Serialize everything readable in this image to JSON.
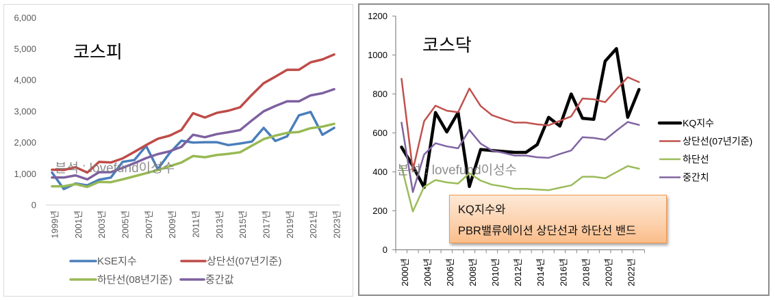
{
  "chart_data": [
    {
      "type": "line",
      "title": "코스피",
      "watermark": "분석 : lovefund이성수",
      "xlabel": "",
      "ylabel": "",
      "grid": false,
      "legend": "bottom",
      "ylim": [
        0,
        6000
      ],
      "y_ticks": [
        0,
        1000,
        2000,
        3000,
        4000,
        5000,
        6000
      ],
      "y_tick_labels": [
        "0",
        "1,000",
        "2,000",
        "3,000",
        "4,000",
        "5,000",
        "6,000"
      ],
      "categories": [
        "1999년",
        "",
        "2001년",
        "",
        "2003년",
        "",
        "2005년",
        "",
        "2007년",
        "",
        "2009년",
        "",
        "2011년",
        "",
        "2013년",
        "",
        "2015년",
        "",
        "2017년",
        "",
        "2019년",
        "",
        "2021년",
        "",
        "2023년"
      ],
      "series": [
        {
          "name": "KSE지수",
          "color": "#4a7ebb",
          "values": [
            1040,
            510,
            690,
            630,
            810,
            880,
            1380,
            1440,
            1890,
            1150,
            1660,
            2060,
            2000,
            2010,
            2010,
            1920,
            1970,
            2030,
            2470,
            2050,
            2200,
            2870,
            2980,
            2250,
            2470
          ]
        },
        {
          "name": "상단선(07년기준)",
          "color": "#be4b48",
          "values": [
            1130,
            1120,
            1210,
            1040,
            1380,
            1360,
            1490,
            1700,
            1920,
            2120,
            2220,
            2400,
            2940,
            2800,
            2950,
            3020,
            3130,
            3530,
            3900,
            4110,
            4330,
            4330,
            4570,
            4660,
            4820
          ]
        },
        {
          "name": "하단선(08년기준)",
          "color": "#98b954",
          "values": [
            600,
            600,
            670,
            580,
            740,
            730,
            820,
            920,
            1020,
            1120,
            1240,
            1360,
            1570,
            1530,
            1600,
            1640,
            1690,
            1900,
            2110,
            2220,
            2310,
            2340,
            2460,
            2510,
            2600
          ]
        },
        {
          "name": "중간값",
          "color": "#7d60a0",
          "values": [
            880,
            880,
            950,
            820,
            1050,
            1050,
            1190,
            1340,
            1500,
            1630,
            1720,
            1860,
            2250,
            2170,
            2270,
            2330,
            2400,
            2710,
            3000,
            3170,
            3320,
            3320,
            3510,
            3580,
            3710
          ]
        }
      ]
    },
    {
      "type": "line",
      "title": "코스닥",
      "watermark": "분석 : lovefund이성수",
      "xlabel": "",
      "ylabel": "",
      "grid": false,
      "legend": "right",
      "ylim": [
        0,
        1200
      ],
      "y_ticks": [
        0,
        200,
        400,
        600,
        800,
        1000,
        1200
      ],
      "y_tick_labels": [
        "0",
        "200",
        "400",
        "600",
        "800",
        "1000",
        "1200"
      ],
      "categories": [
        "2000년",
        "",
        "2004년",
        "",
        "2006년",
        "",
        "2008년",
        "",
        "2010년",
        "",
        "2012년",
        "",
        "2014년",
        "",
        "2016년",
        "",
        "2018년",
        "",
        "2020년",
        "",
        "2022년",
        ""
      ],
      "annotation": {
        "line1": "KQ지수와",
        "line2": "PBR밸류에이션 상단선과 하단선 밴드"
      },
      "series": [
        {
          "name": "KQ지수",
          "color": "#000000",
          "values": [
            527,
            430,
            320,
            705,
            605,
            705,
            325,
            515,
            510,
            505,
            500,
            500,
            540,
            680,
            635,
            800,
            675,
            670,
            968,
            1033,
            680,
            823
          ]
        },
        {
          "name": "상단선(07년기준)",
          "color": "#c0504d",
          "values": [
            878,
            408,
            660,
            740,
            714,
            706,
            828,
            738,
            691,
            671,
            653,
            653,
            644,
            639,
            662,
            685,
            777,
            773,
            758,
            823,
            886,
            861
          ]
        },
        {
          "name": "하단선",
          "color": "#9bbb59",
          "values": [
            428,
            197,
            323,
            358,
            346,
            340,
            393,
            355,
            334,
            325,
            313,
            313,
            309,
            306,
            319,
            331,
            375,
            375,
            367,
            399,
            430,
            416
          ]
        },
        {
          "name": "중간치",
          "color": "#8064a2",
          "values": [
            653,
            296,
            489,
            547,
            531,
            521,
            615,
            545,
            510,
            498,
            484,
            484,
            475,
            472,
            492,
            510,
            578,
            574,
            565,
            612,
            656,
            641
          ]
        }
      ]
    }
  ]
}
